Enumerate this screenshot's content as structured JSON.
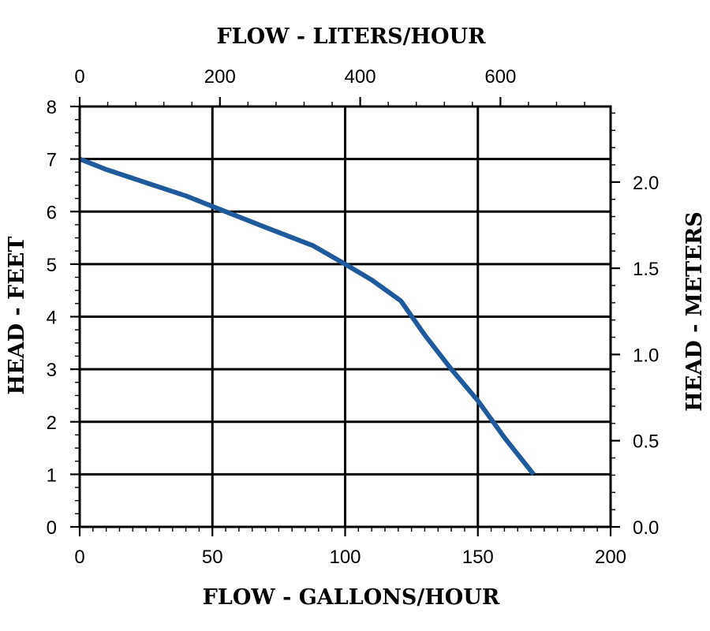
{
  "chart_data": {
    "type": "line",
    "xlabel": "FLOW - GALLONS/HOUR",
    "ylabel": "HEAD - FEET",
    "x2label": "FLOW - LITERS/HOUR",
    "y2label": "HEAD - METERS",
    "xlim": [
      0,
      200
    ],
    "ylim": [
      0,
      8
    ],
    "x2lim": [
      0,
      757.08
    ],
    "y2lim": [
      0,
      2.4384
    ],
    "x_ticks": [
      "0",
      "50",
      "100",
      "150",
      "200"
    ],
    "y_ticks": [
      "0",
      "1",
      "2",
      "3",
      "4",
      "5",
      "6",
      "7",
      "8"
    ],
    "x2_ticks": [
      "0",
      "200",
      "400",
      "600"
    ],
    "y2_ticks": [
      "0.0",
      "0.5",
      "1.0",
      "1.5",
      "2.0"
    ],
    "grid": true,
    "line_color": "#1e5a9c",
    "series": [
      {
        "x": [
          0,
          10,
          25,
          40,
          55,
          70,
          88,
          100,
          110,
          121,
          130,
          140,
          150,
          160,
          171
        ],
        "y": [
          7.0,
          6.8,
          6.55,
          6.3,
          6.0,
          5.7,
          5.35,
          5.0,
          4.7,
          4.3,
          3.65,
          3.0,
          2.4,
          1.7,
          1.0
        ]
      }
    ]
  }
}
